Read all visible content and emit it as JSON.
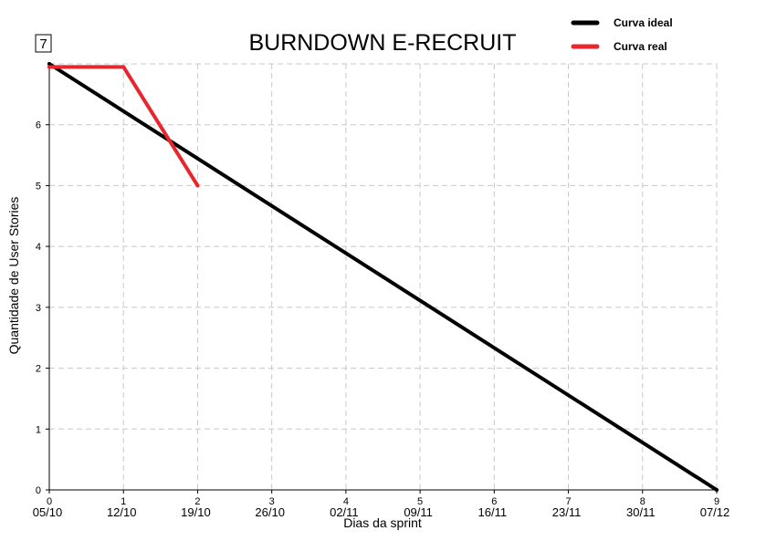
{
  "chart_data": {
    "type": "line",
    "title": "BURNDOWN E-RECRUIT",
    "xlabel": "Dias da sprint",
    "ylabel": "Quantidade de User Stories",
    "x_ticks": [
      0,
      1,
      2,
      3,
      4,
      5,
      6,
      7,
      8,
      9
    ],
    "x_tick_dates": [
      "05/10",
      "12/10",
      "19/10",
      "26/10",
      "02/11",
      "09/11",
      "16/11",
      "23/11",
      "30/11",
      "07/12"
    ],
    "y_ticks": [
      0,
      1,
      2,
      3,
      4,
      5,
      6
    ],
    "y_top_label": "7",
    "xlim": [
      0,
      9
    ],
    "ylim": [
      0,
      7
    ],
    "grid": true,
    "legend_position": "top-right",
    "series": [
      {
        "name": "Curva ideal",
        "color": "#000000",
        "x": [
          0,
          9
        ],
        "y": [
          7,
          0
        ]
      },
      {
        "name": "Curva real",
        "color": "#e8262d",
        "x": [
          0,
          1,
          2
        ],
        "y": [
          6.95,
          6.95,
          5
        ]
      }
    ]
  }
}
